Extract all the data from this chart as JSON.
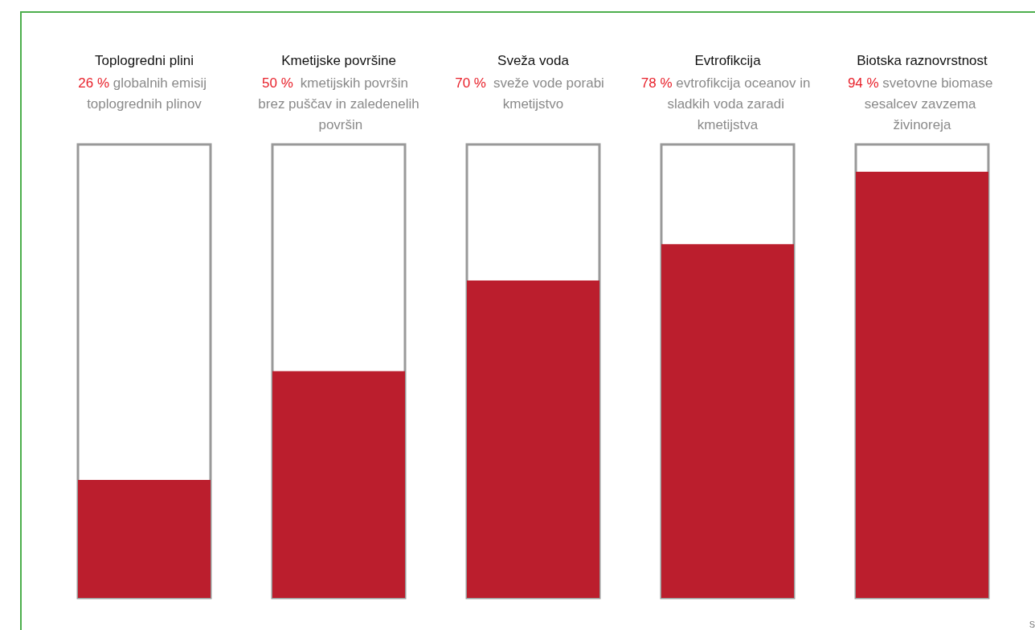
{
  "chart_data": {
    "type": "bar",
    "categories": [
      "Toplogredni plini",
      "Kmetijske površine",
      "Sveža voda",
      "Evtrofikcija",
      "Biotska raznovrstnost"
    ],
    "values": [
      26,
      50,
      70,
      78,
      94
    ],
    "value_labels": [
      "26 %",
      "50 %",
      "70 %",
      "78 %",
      "94 %"
    ],
    "color": "#bb1e2d",
    "ylim": [
      0,
      100
    ],
    "grid": false,
    "annotations": [
      "globalnih emisij toplogrednih plinov",
      "kmetijskih površin brez puščav in zaledenelih površin",
      "sveže vode porabi kmetijstvo",
      "evtrofikcija oceanov in sladkih voda zaradi kmetijstva",
      "svetovne biomase sesalcev zavzema živinoreja",
      "S"
    ]
  }
}
